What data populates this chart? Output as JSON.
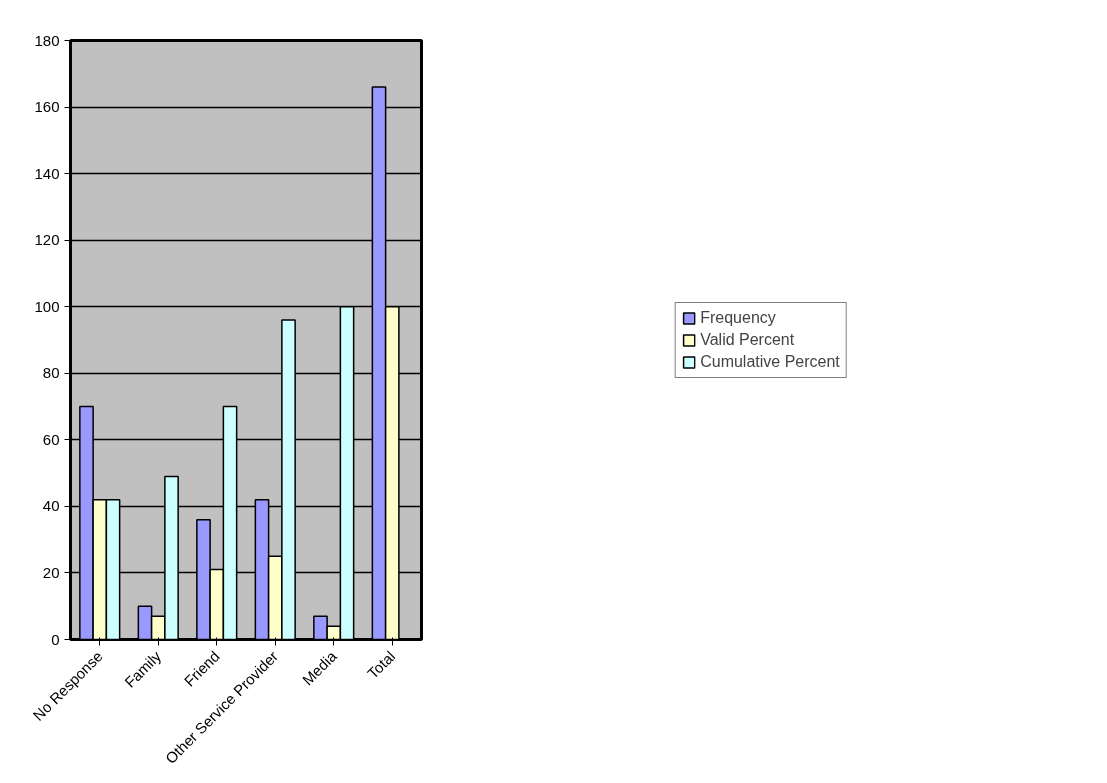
{
  "chart_data": {
    "type": "bar",
    "categories": [
      "No Response",
      "Family",
      "Friend",
      "Other Service Provider",
      "Media",
      "Total"
    ],
    "series": [
      {
        "name": "Frequency",
        "color": "#9999ff",
        "values": [
          70,
          10,
          36,
          42,
          7,
          166
        ]
      },
      {
        "name": "Valid Percent",
        "color": "#ffffcc",
        "values": [
          42,
          7,
          21,
          25,
          4,
          100
        ]
      },
      {
        "name": "Cumulative Percent",
        "color": "#ccffff",
        "values": [
          42,
          49,
          70,
          96,
          100,
          null
        ]
      }
    ],
    "ylim": [
      0,
      180
    ],
    "yticks": [
      0,
      20,
      40,
      60,
      80,
      100,
      120,
      140,
      160,
      180
    ],
    "grid": "y",
    "legend": "right"
  }
}
